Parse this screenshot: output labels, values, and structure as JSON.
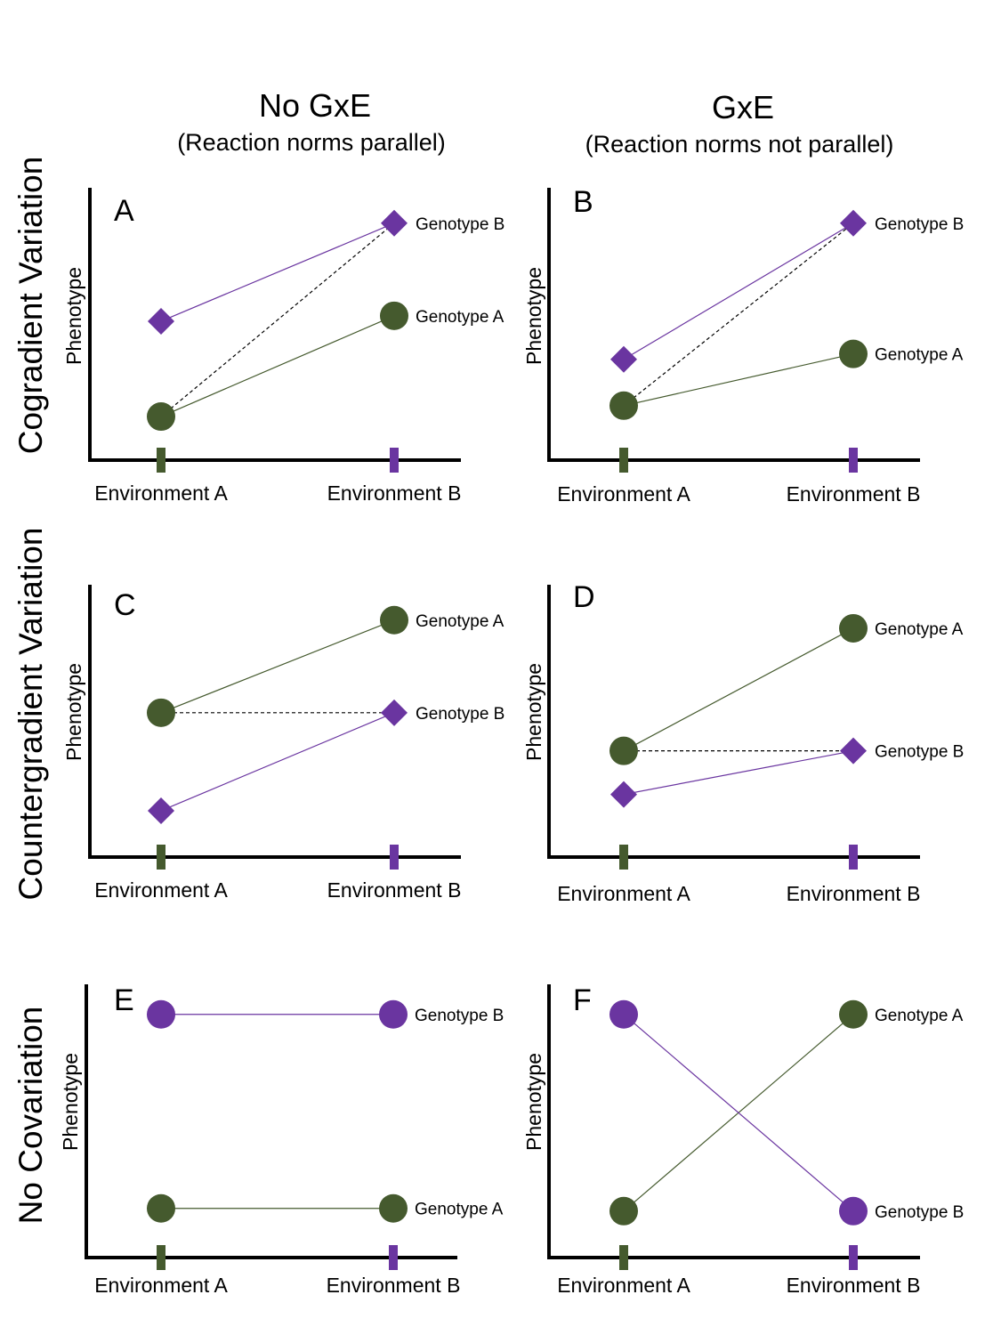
{
  "column_headers": [
    {
      "title": "No GxE",
      "subtitle": "(Reaction norms parallel)"
    },
    {
      "title": "GxE",
      "subtitle": "(Reaction norms not parallel)"
    }
  ],
  "row_headers": [
    "Cogradient Variation",
    "Countergradient Variation",
    "No Covariation"
  ],
  "y_axis_label": "Phenotype",
  "environments": [
    "Environment A",
    "Environment B"
  ],
  "colors": {
    "genotype_a": "#455a2e",
    "genotype_b": "#6a35a0",
    "axis": "#000000",
    "dashed": "#000000"
  },
  "panels": [
    {
      "letter": "A",
      "row": "Cogradient Variation",
      "gxe": false,
      "genotype_a": {
        "label": "Genotype A",
        "marker": "circle",
        "env_a": 0.16,
        "env_b": 0.53
      },
      "genotype_b": {
        "label": "Genotype B",
        "marker": "diamond",
        "env_a": 0.51,
        "env_b": 0.87
      },
      "dashed_link": "A_envA_to_B_envB"
    },
    {
      "letter": "B",
      "row": "Cogradient Variation",
      "gxe": true,
      "genotype_a": {
        "label": "Genotype A",
        "marker": "circle",
        "env_a": 0.2,
        "env_b": 0.39
      },
      "genotype_b": {
        "label": "Genotype B",
        "marker": "diamond",
        "env_a": 0.37,
        "env_b": 0.87
      },
      "dashed_link": "A_envA_to_B_envB"
    },
    {
      "letter": "C",
      "row": "Countergradient Variation",
      "gxe": false,
      "genotype_a": {
        "label": "Genotype A",
        "marker": "circle",
        "env_a": 0.53,
        "env_b": 0.87
      },
      "genotype_b": {
        "label": "Genotype B",
        "marker": "diamond",
        "env_a": 0.17,
        "env_b": 0.53
      },
      "dashed_link": "A_envA_to_B_envB"
    },
    {
      "letter": "D",
      "row": "Countergradient Variation",
      "gxe": true,
      "genotype_a": {
        "label": "Genotype A",
        "marker": "circle",
        "env_a": 0.39,
        "env_b": 0.84
      },
      "genotype_b": {
        "label": "Genotype B",
        "marker": "diamond",
        "env_a": 0.23,
        "env_b": 0.39
      },
      "dashed_link": "A_envA_to_B_envB"
    },
    {
      "letter": "E",
      "row": "No Covariation",
      "gxe": false,
      "genotype_a": {
        "label": "Genotype A",
        "marker": "circle",
        "env_a": 0.18,
        "env_b": 0.18
      },
      "genotype_b": {
        "label": "Genotype B",
        "marker": "circle",
        "env_a": 0.89,
        "env_b": 0.89
      },
      "dashed_link": "none"
    },
    {
      "letter": "F",
      "row": "No Covariation",
      "gxe": true,
      "genotype_a": {
        "label": "Genotype A",
        "marker": "circle",
        "env_a": 0.17,
        "env_b": 0.89
      },
      "genotype_b": {
        "label": "Genotype B",
        "marker": "circle",
        "env_a": 0.89,
        "env_b": 0.17
      },
      "dashed_link": "none"
    }
  ]
}
